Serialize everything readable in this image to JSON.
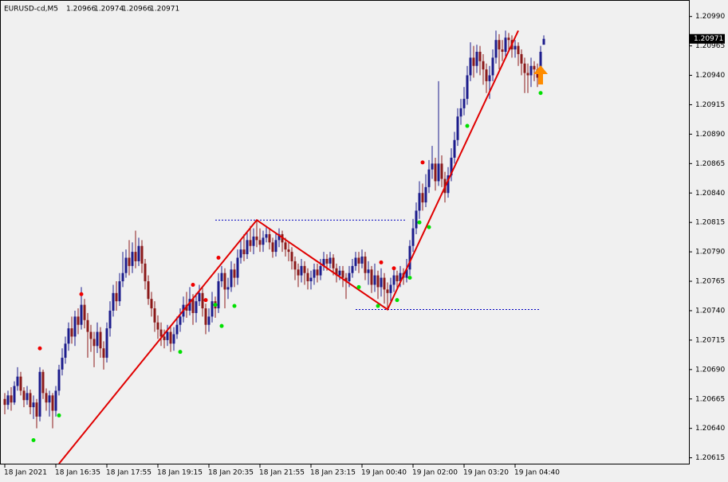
{
  "chart_data": {
    "type": "candlestick",
    "title": "EURUSD-cd,M5",
    "up_color": "#1c1c8c",
    "down_color": "#8b1a1a",
    "ylim": [
      1.2061,
      1.21004
    ],
    "yticks": [
      {
        "value": 1.2099,
        "label": "1.20990"
      },
      1.20965,
      {
        "value": 1.2094,
        "label": "1.20940"
      },
      1.20915,
      {
        "value": 1.2089,
        "label": "1.20890"
      },
      1.20865,
      {
        "value": 1.2084,
        "label": "1.20840"
      },
      1.20815,
      {
        "value": 1.2079,
        "label": "1.20790"
      },
      1.20765,
      {
        "value": 1.2074,
        "label": "1.20740"
      },
      1.20715,
      {
        "value": 1.2069,
        "label": "1.20690"
      },
      1.20665,
      {
        "value": 1.2064,
        "label": "1.20640"
      },
      1.20615
    ],
    "categories": [
      "18 Jan 2021",
      null,
      null,
      null,
      null,
      null,
      null,
      null,
      null,
      null,
      null,
      null,
      null,
      null,
      null,
      null,
      "18 Jan 16:35",
      null,
      null,
      null,
      null,
      null,
      null,
      null,
      null,
      null,
      null,
      null,
      null,
      null,
      null,
      null,
      "18 Jan 17:55",
      null,
      null,
      null,
      null,
      null,
      null,
      null,
      null,
      null,
      null,
      null,
      null,
      null,
      null,
      null,
      "18 Jan 19:15",
      null,
      null,
      null,
      null,
      null,
      null,
      null,
      null,
      null,
      null,
      null,
      null,
      null,
      null,
      null,
      "18 Jan 20:35",
      null,
      null,
      null,
      null,
      null,
      null,
      null,
      null,
      null,
      null,
      null,
      null,
      null,
      null,
      null,
      "18 Jan 21:55",
      null,
      null,
      null,
      null,
      null,
      null,
      null,
      null,
      null,
      null,
      null,
      null,
      null,
      null,
      null,
      "18 Jan 23:15",
      null,
      null,
      null,
      null,
      null,
      null,
      null,
      null,
      null,
      null,
      null,
      null,
      null,
      null,
      null,
      "19 Jan 00:40",
      null,
      null,
      null,
      null,
      null,
      null,
      null,
      null,
      null,
      null,
      null,
      null,
      null,
      null,
      null,
      "19 Jan 02:00",
      null,
      null,
      null,
      null,
      null,
      null,
      null,
      null,
      null,
      null,
      null,
      null,
      null,
      null,
      null,
      "19 Jan 03:20",
      null,
      null,
      null,
      null,
      null,
      null,
      null,
      null,
      null,
      null,
      null,
      null,
      null,
      null,
      null,
      "19 Jan 04:40",
      null,
      null,
      null,
      null,
      null,
      null,
      null,
      null,
      null
    ],
    "ohlc": [
      [
        1.20665,
        1.2067,
        1.20652,
        1.2066
      ],
      [
        1.2066,
        1.20672,
        1.20656,
        1.20668
      ],
      [
        1.20668,
        1.20675,
        1.20655,
        1.20662
      ],
      [
        1.20662,
        1.2068,
        1.2066,
        1.20676
      ],
      [
        1.20676,
        1.20692,
        1.20672,
        1.20684
      ],
      [
        1.20684,
        1.20688,
        1.20668,
        1.20672
      ],
      [
        1.20672,
        1.20675,
        1.20658,
        1.20664
      ],
      [
        1.20664,
        1.20676,
        1.2066,
        1.2067
      ],
      [
        1.2067,
        1.20673,
        1.20652,
        1.20658
      ],
      [
        1.20658,
        1.20668,
        1.20648,
        1.20662
      ],
      [
        1.20662,
        1.20665,
        1.2064,
        1.2065
      ],
      [
        1.2065,
        1.20692,
        1.20646,
        1.20688
      ],
      [
        1.20688,
        1.2069,
        1.20665,
        1.2067
      ],
      [
        1.2067,
        1.20674,
        1.20655,
        1.20662
      ],
      [
        1.20662,
        1.20672,
        1.2065,
        1.20668
      ],
      [
        1.20668,
        1.2067,
        1.2064,
        1.20655
      ],
      [
        1.20655,
        1.20676,
        1.2065,
        1.20672
      ],
      [
        1.20672,
        1.20694,
        1.20668,
        1.2069
      ],
      [
        1.2069,
        1.20708,
        1.20685,
        1.207
      ],
      [
        1.207,
        1.20718,
        1.20695,
        1.20712
      ],
      [
        1.20712,
        1.2073,
        1.20706,
        1.20725
      ],
      [
        1.20725,
        1.20735,
        1.20712,
        1.20718
      ],
      [
        1.20718,
        1.2074,
        1.2071,
        1.20735
      ],
      [
        1.20735,
        1.20742,
        1.2072,
        1.20728
      ],
      [
        1.20728,
        1.2076,
        1.20724,
        1.20745
      ],
      [
        1.20745,
        1.2075,
        1.20725,
        1.20732
      ],
      [
        1.20732,
        1.20738,
        1.207,
        1.20722
      ],
      [
        1.20722,
        1.20728,
        1.20705,
        1.20716
      ],
      [
        1.20716,
        1.20722,
        1.20692,
        1.2071
      ],
      [
        1.2071,
        1.2073,
        1.20704,
        1.20722
      ],
      [
        1.20722,
        1.20726,
        1.207,
        1.20708
      ],
      [
        1.20708,
        1.20714,
        1.2069,
        1.207
      ],
      [
        1.207,
        1.2073,
        1.20696,
        1.20725
      ],
      [
        1.20725,
        1.20748,
        1.20718,
        1.2074
      ],
      [
        1.2074,
        1.20762,
        1.20735,
        1.20755
      ],
      [
        1.20755,
        1.20765,
        1.2074,
        1.20748
      ],
      [
        1.20748,
        1.20772,
        1.20744,
        1.20765
      ],
      [
        1.20765,
        1.2079,
        1.2076,
        1.20772
      ],
      [
        1.20772,
        1.20792,
        1.20768,
        1.20785
      ],
      [
        1.20785,
        1.208,
        1.2077,
        1.20778
      ],
      [
        1.20778,
        1.20798,
        1.20772,
        1.2079
      ],
      [
        1.2079,
        1.20808,
        1.20776,
        1.20782
      ],
      [
        1.20782,
        1.20802,
        1.20778,
        1.20795
      ],
      [
        1.20795,
        1.208,
        1.20772,
        1.2078
      ],
      [
        1.2078,
        1.20784,
        1.20758,
        1.20765
      ],
      [
        1.20765,
        1.2077,
        1.20745,
        1.2075
      ],
      [
        1.2075,
        1.20756,
        1.20735,
        1.20742
      ],
      [
        1.20742,
        1.20748,
        1.20722,
        1.2073
      ],
      [
        1.2073,
        1.20736,
        1.20716,
        1.20724
      ],
      [
        1.20724,
        1.2073,
        1.2071,
        1.20718
      ],
      [
        1.20718,
        1.20724,
        1.20708,
        1.20715
      ],
      [
        1.20715,
        1.20728,
        1.2071,
        1.20722
      ],
      [
        1.20722,
        1.20726,
        1.20705,
        1.20712
      ],
      [
        1.20712,
        1.20726,
        1.20706,
        1.2072
      ],
      [
        1.2072,
        1.20735,
        1.20716,
        1.20728
      ],
      [
        1.20728,
        1.20742,
        1.20722,
        1.20735
      ],
      [
        1.20735,
        1.20752,
        1.2073,
        1.20745
      ],
      [
        1.20745,
        1.20756,
        1.20734,
        1.2074
      ],
      [
        1.2074,
        1.2076,
        1.20736,
        1.2075
      ],
      [
        1.2075,
        1.20754,
        1.20728,
        1.20738
      ],
      [
        1.20738,
        1.20755,
        1.2073,
        1.20748
      ],
      [
        1.20748,
        1.20762,
        1.20744,
        1.20755
      ],
      [
        1.20755,
        1.2076,
        1.20735,
        1.20742
      ],
      [
        1.20742,
        1.20746,
        1.2072,
        1.20728
      ],
      [
        1.20728,
        1.20742,
        1.20722,
        1.20735
      ],
      [
        1.20735,
        1.20756,
        1.2073,
        1.20748
      ],
      [
        1.20748,
        1.20752,
        1.20734,
        1.20742
      ],
      [
        1.20742,
        1.20772,
        1.20738,
        1.20765
      ],
      [
        1.20765,
        1.20778,
        1.2076,
        1.20772
      ],
      [
        1.20772,
        1.20776,
        1.20742,
        1.20758
      ],
      [
        1.20758,
        1.20768,
        1.2075,
        1.2076
      ],
      [
        1.2076,
        1.20782,
        1.20756,
        1.20775
      ],
      [
        1.20775,
        1.2078,
        1.2076,
        1.20768
      ],
      [
        1.20768,
        1.20792,
        1.20762,
        1.20785
      ],
      [
        1.20785,
        1.208,
        1.2078,
        1.20792
      ],
      [
        1.20792,
        1.20805,
        1.20782,
        1.20788
      ],
      [
        1.20788,
        1.20808,
        1.20784,
        1.208
      ],
      [
        1.208,
        1.20812,
        1.2079,
        1.20795
      ],
      [
        1.20795,
        1.2081,
        1.20788,
        1.20803
      ],
      [
        1.20803,
        1.20817,
        1.20794,
        1.208
      ],
      [
        1.208,
        1.2081,
        1.2079,
        1.20796
      ],
      [
        1.20796,
        1.20808,
        1.2079,
        1.20802
      ],
      [
        1.20802,
        1.20812,
        1.20798,
        1.20805
      ],
      [
        1.20805,
        1.2081,
        1.20792,
        1.20798
      ],
      [
        1.20798,
        1.20802,
        1.20785,
        1.2079
      ],
      [
        1.2079,
        1.20806,
        1.20786,
        1.208
      ],
      [
        1.208,
        1.2081,
        1.20794,
        1.20805
      ],
      [
        1.20805,
        1.20808,
        1.2079,
        1.20798
      ],
      [
        1.20798,
        1.20802,
        1.20786,
        1.20792
      ],
      [
        1.20792,
        1.20798,
        1.20782,
        1.2079
      ],
      [
        1.2079,
        1.20794,
        1.20775,
        1.20782
      ],
      [
        1.20782,
        1.20786,
        1.20766,
        1.20775
      ],
      [
        1.20775,
        1.2078,
        1.2076,
        1.2077
      ],
      [
        1.2077,
        1.20784,
        1.20764,
        1.20778
      ],
      [
        1.20778,
        1.20782,
        1.20762,
        1.20772
      ],
      [
        1.20772,
        1.20776,
        1.20758,
        1.20765
      ],
      [
        1.20765,
        1.20774,
        1.20758,
        1.20768
      ],
      [
        1.20768,
        1.2078,
        1.20762,
        1.20775
      ],
      [
        1.20775,
        1.2078,
        1.20764,
        1.2077
      ],
      [
        1.2077,
        1.20784,
        1.20766,
        1.20778
      ],
      [
        1.20778,
        1.2079,
        1.20774,
        1.20784
      ],
      [
        1.20784,
        1.20788,
        1.20774,
        1.2078
      ],
      [
        1.2078,
        1.2079,
        1.20776,
        1.20785
      ],
      [
        1.20785,
        1.20788,
        1.2077,
        1.20776
      ],
      [
        1.20776,
        1.2078,
        1.20764,
        1.2077
      ],
      [
        1.2077,
        1.20778,
        1.20766,
        1.20774
      ],
      [
        1.20774,
        1.20778,
        1.2076,
        1.20768
      ],
      [
        1.20768,
        1.20772,
        1.2075,
        1.20765
      ],
      [
        1.20765,
        1.20778,
        1.2076,
        1.20772
      ],
      [
        1.20772,
        1.20784,
        1.20768,
        1.20778
      ],
      [
        1.20778,
        1.2079,
        1.20774,
        1.20785
      ],
      [
        1.20785,
        1.2079,
        1.20772,
        1.2078
      ],
      [
        1.2078,
        1.20792,
        1.20776,
        1.20786
      ],
      [
        1.20786,
        1.2079,
        1.20766,
        1.20772
      ],
      [
        1.20772,
        1.20782,
        1.20762,
        1.20775
      ],
      [
        1.20775,
        1.20778,
        1.20755,
        1.20762
      ],
      [
        1.20762,
        1.2078,
        1.20756,
        1.2077
      ],
      [
        1.2077,
        1.20774,
        1.2075,
        1.2076
      ],
      [
        1.2076,
        1.20776,
        1.20752,
        1.20768
      ],
      [
        1.20768,
        1.20772,
        1.20746,
        1.20758
      ],
      [
        1.20758,
        1.20764,
        1.20741,
        1.20755
      ],
      [
        1.20755,
        1.20768,
        1.20748,
        1.20762
      ],
      [
        1.20762,
        1.20776,
        1.20756,
        1.2077
      ],
      [
        1.2077,
        1.20774,
        1.20758,
        1.20765
      ],
      [
        1.20765,
        1.20778,
        1.2076,
        1.20772
      ],
      [
        1.20772,
        1.20776,
        1.20762,
        1.20768
      ],
      [
        1.20768,
        1.20784,
        1.20764,
        1.20775
      ],
      [
        1.20775,
        1.208,
        1.2077,
        1.20795
      ],
      [
        1.20795,
        1.20818,
        1.2079,
        1.2081
      ],
      [
        1.2081,
        1.20832,
        1.20805,
        1.20825
      ],
      [
        1.20825,
        1.2085,
        1.20818,
        1.2084
      ],
      [
        1.2084,
        1.20848,
        1.20825,
        1.20832
      ],
      [
        1.20832,
        1.20856,
        1.20828,
        1.20845
      ],
      [
        1.20845,
        1.20868,
        1.2084,
        1.2086
      ],
      [
        1.2086,
        1.2088,
        1.20852,
        1.20865
      ],
      [
        1.20865,
        1.2087,
        1.20842,
        1.2085
      ],
      [
        1.2085,
        1.20935,
        1.20846,
        1.20865
      ],
      [
        1.20865,
        1.20872,
        1.20845,
        1.20852
      ],
      [
        1.20852,
        1.20858,
        1.20832,
        1.2084
      ],
      [
        1.2084,
        1.20862,
        1.20836,
        1.20855
      ],
      [
        1.20855,
        1.20878,
        1.2085,
        1.2087
      ],
      [
        1.2087,
        1.20892,
        1.20865,
        1.20885
      ],
      [
        1.20885,
        1.20912,
        1.2088,
        1.20905
      ],
      [
        1.20905,
        1.2092,
        1.20898,
        1.20912
      ],
      [
        1.20912,
        1.2093,
        1.20906,
        1.2092
      ],
      [
        1.2092,
        1.20948,
        1.20915,
        1.2094
      ],
      [
        1.2094,
        1.20968,
        1.20935,
        1.20955
      ],
      [
        1.20955,
        1.20965,
        1.20938,
        1.20948
      ],
      [
        1.20948,
        1.20966,
        1.20942,
        1.2096
      ],
      [
        1.2096,
        1.20965,
        1.2094,
        1.20952
      ],
      [
        1.20952,
        1.20958,
        1.20932,
        1.20945
      ],
      [
        1.20945,
        1.2095,
        1.20925,
        1.20935
      ],
      [
        1.20935,
        1.20948,
        1.2092,
        1.2094
      ],
      [
        1.2094,
        1.20962,
        1.20935,
        1.20955
      ],
      [
        1.20955,
        1.20978,
        1.2095,
        1.2097
      ],
      [
        1.2097,
        1.20975,
        1.20945,
        1.20962
      ],
      [
        1.20962,
        1.2097,
        1.20952,
        1.2096
      ],
      [
        1.2096,
        1.20978,
        1.20955,
        1.20972
      ],
      [
        1.20972,
        1.20976,
        1.2096,
        1.2097
      ],
      [
        1.2097,
        1.20974,
        1.20955,
        1.20962
      ],
      [
        1.20962,
        1.2097,
        1.20955,
        1.20965
      ],
      [
        1.20965,
        1.20968,
        1.20948,
        1.20958
      ],
      [
        1.20958,
        1.20962,
        1.2094,
        1.2095
      ],
      [
        1.2095,
        1.20955,
        1.20925,
        1.20942
      ],
      [
        1.20942,
        1.2095,
        1.20925,
        1.2094
      ],
      [
        1.2094,
        1.20955,
        1.2093,
        1.20948
      ],
      [
        1.20948,
        1.20952,
        1.20935,
        1.20945
      ],
      [
        1.20945,
        1.2095,
        1.2093,
        1.20938
      ],
      [
        1.20938,
        1.20965,
        1.20935,
        1.2096
      ],
      [
        1.20966,
        1.20974,
        1.20966,
        1.20971
      ]
    ],
    "zigzag": {
      "color": "#e00000",
      "x": [
        17,
        79,
        120,
        161
      ],
      "values": [
        1.2061,
        1.20817,
        1.20741,
        1.20978
      ]
    },
    "levels": [
      {
        "value": 1.20817,
        "from": 66,
        "to": 126,
        "color": "#0000c0"
      },
      {
        "value": 1.20741,
        "from": 110,
        "to": 168,
        "color": "#0000c0"
      }
    ],
    "fractals": [
      {
        "color": "#ee0000",
        "x": [
          11,
          24,
          59,
          63,
          67,
          118,
          122,
          131
        ],
        "values": [
          1.20708,
          1.20754,
          1.20762,
          1.20749,
          1.20785,
          1.20781,
          1.20776,
          1.20866
        ]
      },
      {
        "color": "#00e000",
        "x": [
          9,
          17,
          55,
          66,
          68,
          72,
          111,
          117,
          123,
          127,
          130,
          133,
          145,
          168
        ],
        "values": [
          1.2063,
          1.20651,
          1.20705,
          1.20745,
          1.20727,
          1.20744,
          1.2076,
          1.20744,
          1.20749,
          1.20768,
          1.20815,
          1.20811,
          1.20897,
          1.20925
        ]
      }
    ],
    "signal": {
      "x": 168,
      "value": 1.20939,
      "color": "#ff8c00"
    }
  }
}
